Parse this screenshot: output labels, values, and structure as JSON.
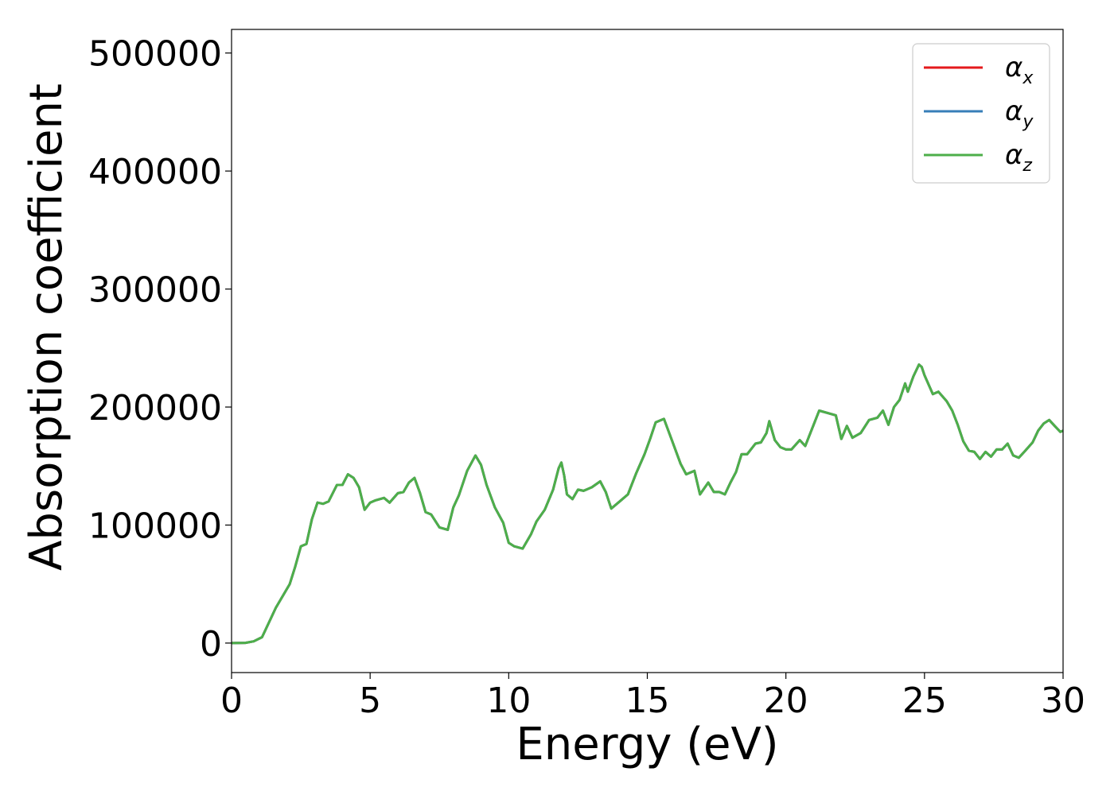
{
  "chart_data": {
    "type": "line",
    "xlabel": "Energy (eV)",
    "ylabel": "Absorption coefficient",
    "xlim": [
      0,
      30
    ],
    "ylim": [
      -25000,
      520000
    ],
    "xticks": [
      0,
      5,
      10,
      15,
      20,
      25,
      30
    ],
    "xtick_labels": [
      "0",
      "5",
      "10",
      "15",
      "20",
      "25",
      "30"
    ],
    "yticks": [
      0,
      100000,
      200000,
      300000,
      400000,
      500000
    ],
    "ytick_labels": [
      "0",
      "100000",
      "200000",
      "300000",
      "400000",
      "500000"
    ],
    "grid": false,
    "legend_position": "top-right",
    "x": [
      0.0,
      0.5,
      0.8,
      1.1,
      1.3,
      1.6,
      1.9,
      2.1,
      2.3,
      2.5,
      2.7,
      2.9,
      3.1,
      3.3,
      3.5,
      3.8,
      4.0,
      4.2,
      4.4,
      4.6,
      4.8,
      5.0,
      5.2,
      5.5,
      5.7,
      6.0,
      6.2,
      6.4,
      6.6,
      6.8,
      7.0,
      7.2,
      7.5,
      7.8,
      8.0,
      8.2,
      8.5,
      8.8,
      9.0,
      9.2,
      9.5,
      9.8,
      10.0,
      10.2,
      10.5,
      10.8,
      11.0,
      11.3,
      11.6,
      11.8,
      11.9,
      12.0,
      12.1,
      12.3,
      12.5,
      12.7,
      13.0,
      13.3,
      13.5,
      13.7,
      14.0,
      14.3,
      14.6,
      14.9,
      15.1,
      15.3,
      15.6,
      15.9,
      16.2,
      16.4,
      16.7,
      16.9,
      17.2,
      17.4,
      17.6,
      17.8,
      18.0,
      18.2,
      18.4,
      18.6,
      18.9,
      19.1,
      19.3,
      19.4,
      19.6,
      19.8,
      20.0,
      20.2,
      20.5,
      20.7,
      21.0,
      21.2,
      21.5,
      21.8,
      22.0,
      22.2,
      22.4,
      22.7,
      23.0,
      23.3,
      23.5,
      23.7,
      23.9,
      24.1,
      24.3,
      24.4,
      24.6,
      24.8,
      24.9,
      25.0,
      25.3,
      25.5,
      25.8,
      26.0,
      26.2,
      26.4,
      26.6,
      26.8,
      27.0,
      27.2,
      27.4,
      27.6,
      27.8,
      28.0,
      28.2,
      28.4,
      28.6,
      28.9,
      29.1,
      29.3,
      29.5,
      29.7,
      29.9,
      30.0
    ],
    "series": [
      {
        "name": "α_x",
        "legend_main": "α",
        "legend_sub": "x",
        "color": "#e41a1c",
        "values": [
          0,
          200,
          1500,
          5000,
          15000,
          30000,
          42000,
          50000,
          65000,
          82000,
          84000,
          105000,
          119000,
          118000,
          120000,
          134000,
          134000,
          143000,
          140000,
          132000,
          113000,
          119000,
          121000,
          123000,
          119000,
          127000,
          128000,
          136000,
          140000,
          127000,
          111000,
          109000,
          98000,
          96000,
          115000,
          125000,
          146000,
          159000,
          151000,
          134000,
          115000,
          102000,
          85000,
          82000,
          80000,
          92000,
          103000,
          113000,
          130000,
          148000,
          153000,
          142000,
          126000,
          122000,
          130000,
          129000,
          132000,
          137000,
          128000,
          114000,
          120000,
          126000,
          144000,
          160000,
          173000,
          187000,
          190000,
          171000,
          152000,
          143000,
          146000,
          126000,
          136000,
          128000,
          128000,
          126000,
          136000,
          145000,
          160000,
          160000,
          169000,
          170000,
          178000,
          188000,
          172000,
          166000,
          164000,
          164000,
          172000,
          167000,
          185000,
          197000,
          195000,
          193000,
          173000,
          184000,
          174000,
          178000,
          189000,
          191000,
          197000,
          185000,
          200000,
          206000,
          220000,
          213000,
          226000,
          236000,
          234000,
          227000,
          211000,
          213000,
          205000,
          197000,
          185000,
          171000,
          163000,
          162000,
          156000,
          162000,
          158000,
          164000,
          164000,
          169000,
          159000,
          157000,
          162000,
          170000,
          180000,
          186000,
          189000,
          184000,
          179000,
          180000
        ]
      },
      {
        "name": "α_y",
        "legend_main": "α",
        "legend_sub": "y",
        "color": "#377eb8",
        "values": [
          0,
          200,
          1500,
          5000,
          15000,
          30000,
          42000,
          50000,
          65000,
          82000,
          84000,
          105000,
          119000,
          118000,
          120000,
          134000,
          134000,
          143000,
          140000,
          132000,
          113000,
          119000,
          121000,
          123000,
          119000,
          127000,
          128000,
          136000,
          140000,
          127000,
          111000,
          109000,
          98000,
          96000,
          115000,
          125000,
          146000,
          159000,
          151000,
          134000,
          115000,
          102000,
          85000,
          82000,
          80000,
          92000,
          103000,
          113000,
          130000,
          148000,
          153000,
          142000,
          126000,
          122000,
          130000,
          129000,
          132000,
          137000,
          128000,
          114000,
          120000,
          126000,
          144000,
          160000,
          173000,
          187000,
          190000,
          171000,
          152000,
          143000,
          146000,
          126000,
          136000,
          128000,
          128000,
          126000,
          136000,
          145000,
          160000,
          160000,
          169000,
          170000,
          178000,
          188000,
          172000,
          166000,
          164000,
          164000,
          172000,
          167000,
          185000,
          197000,
          195000,
          193000,
          173000,
          184000,
          174000,
          178000,
          189000,
          191000,
          197000,
          185000,
          200000,
          206000,
          220000,
          213000,
          226000,
          236000,
          234000,
          227000,
          211000,
          213000,
          205000,
          197000,
          185000,
          171000,
          163000,
          162000,
          156000,
          162000,
          158000,
          164000,
          164000,
          169000,
          159000,
          157000,
          162000,
          170000,
          180000,
          186000,
          189000,
          184000,
          179000,
          180000
        ]
      },
      {
        "name": "α_z",
        "legend_main": "α",
        "legend_sub": "z",
        "color": "#4daf4a",
        "values": [
          0,
          200,
          1500,
          5000,
          15000,
          30000,
          42000,
          50000,
          65000,
          82000,
          84000,
          105000,
          119000,
          118000,
          120000,
          134000,
          134000,
          143000,
          140000,
          132000,
          113000,
          119000,
          121000,
          123000,
          119000,
          127000,
          128000,
          136000,
          140000,
          127000,
          111000,
          109000,
          98000,
          96000,
          115000,
          125000,
          146000,
          159000,
          151000,
          134000,
          115000,
          102000,
          85000,
          82000,
          80000,
          92000,
          103000,
          113000,
          130000,
          148000,
          153000,
          142000,
          126000,
          122000,
          130000,
          129000,
          132000,
          137000,
          128000,
          114000,
          120000,
          126000,
          144000,
          160000,
          173000,
          187000,
          190000,
          171000,
          152000,
          143000,
          146000,
          126000,
          136000,
          128000,
          128000,
          126000,
          136000,
          145000,
          160000,
          160000,
          169000,
          170000,
          178000,
          188000,
          172000,
          166000,
          164000,
          164000,
          172000,
          167000,
          185000,
          197000,
          195000,
          193000,
          173000,
          184000,
          174000,
          178000,
          189000,
          191000,
          197000,
          185000,
          200000,
          206000,
          220000,
          213000,
          226000,
          236000,
          234000,
          227000,
          211000,
          213000,
          205000,
          197000,
          185000,
          171000,
          163000,
          162000,
          156000,
          162000,
          158000,
          164000,
          164000,
          169000,
          159000,
          157000,
          162000,
          170000,
          180000,
          186000,
          189000,
          184000,
          179000,
          180000
        ]
      }
    ]
  }
}
